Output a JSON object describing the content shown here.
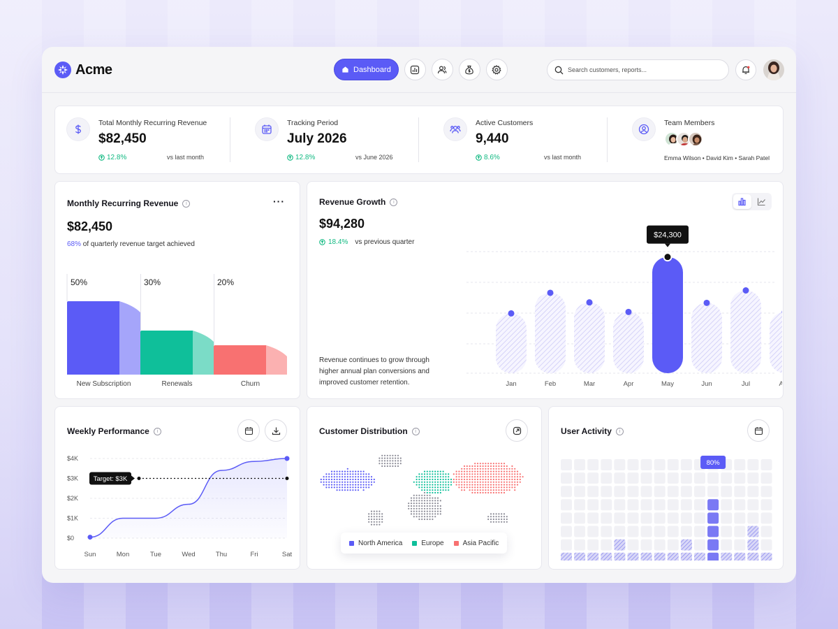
{
  "app": {
    "name": "Acme"
  },
  "nav": {
    "active_label": "Dashboard",
    "buttons": [
      "bar-chart-icon",
      "users-icon",
      "money-bag-icon",
      "settings-icon"
    ]
  },
  "search": {
    "placeholder": "Search customers, reports..."
  },
  "kpis": [
    {
      "label": "Total Monthly Recurring Revenue",
      "value": "$82,450",
      "delta": "12.8%",
      "compare": "vs last month",
      "icon": "dollar-icon"
    },
    {
      "label": "Tracking Period",
      "value": "July 2026",
      "delta": "12.8%",
      "compare": "vs June 2026",
      "icon": "calendar-icon"
    },
    {
      "label": "Active Customers",
      "value": "9,440",
      "delta": "8.6%",
      "compare": "vs last month",
      "icon": "users-icon"
    },
    {
      "label": "Team Members",
      "names": "Emma Wilson • David Kim • Sarah Patel",
      "icon": "user-circle-icon"
    }
  ],
  "mrr": {
    "title": "Monthly Recurring Revenue",
    "value": "$82,450",
    "target_pct": "68%",
    "target_text": "of quarterly revenue target achieved",
    "chart_data": {
      "type": "bar",
      "categories": [
        "New Subscription",
        "Renewals",
        "Churn"
      ],
      "values": [
        50,
        30,
        20
      ],
      "value_labels": [
        "50%",
        "30%",
        "20%"
      ],
      "colors": [
        "#5b5bf6",
        "#0fbf9a",
        "#f87171"
      ]
    }
  },
  "revenue_growth": {
    "title": "Revenue Growth",
    "value": "$94,280",
    "delta": "18.4%",
    "compare": "vs previous quarter",
    "description": "Revenue continues to grow through higher annual plan conversions and improved customer retention.",
    "chart_data": {
      "type": "bar",
      "categories": [
        "Jan",
        "Feb",
        "Mar",
        "Apr",
        "May",
        "Jun",
        "Jul",
        "Aug"
      ],
      "values": [
        12500,
        16800,
        14800,
        12800,
        24300,
        14700,
        17300,
        12800
      ],
      "highlight_index": 4,
      "highlight_label": "$24,300",
      "ylim": [
        0,
        26000
      ],
      "accent": "#5b5bf6"
    }
  },
  "weekly": {
    "title": "Weekly Performance",
    "target_label": "Target: $3K",
    "chart_data": {
      "type": "line",
      "x": [
        "Sun",
        "Mon",
        "Tue",
        "Wed",
        "Thu",
        "Fri",
        "Sat"
      ],
      "y_ticks": [
        "$0",
        "$1K",
        "$2K",
        "$3K",
        "$4K"
      ],
      "values": [
        0.05,
        1.0,
        1.0,
        1.7,
        3.4,
        3.85,
        4.0
      ],
      "target": 3.0,
      "ylim": [
        0,
        4
      ]
    }
  },
  "distribution": {
    "title": "Customer Distribution",
    "legend": [
      {
        "name": "North America",
        "color": "#5b5bf6"
      },
      {
        "name": "Europe",
        "color": "#0fbf9a"
      },
      {
        "name": "Asia Pacific",
        "color": "#f87171"
      }
    ]
  },
  "activity": {
    "title": "User Activity",
    "peak_label": "80%",
    "levels": [
      1,
      1,
      1,
      1,
      2,
      1,
      1,
      1,
      1,
      2,
      1,
      5,
      1,
      1,
      3,
      1,
      1,
      2
    ]
  }
}
